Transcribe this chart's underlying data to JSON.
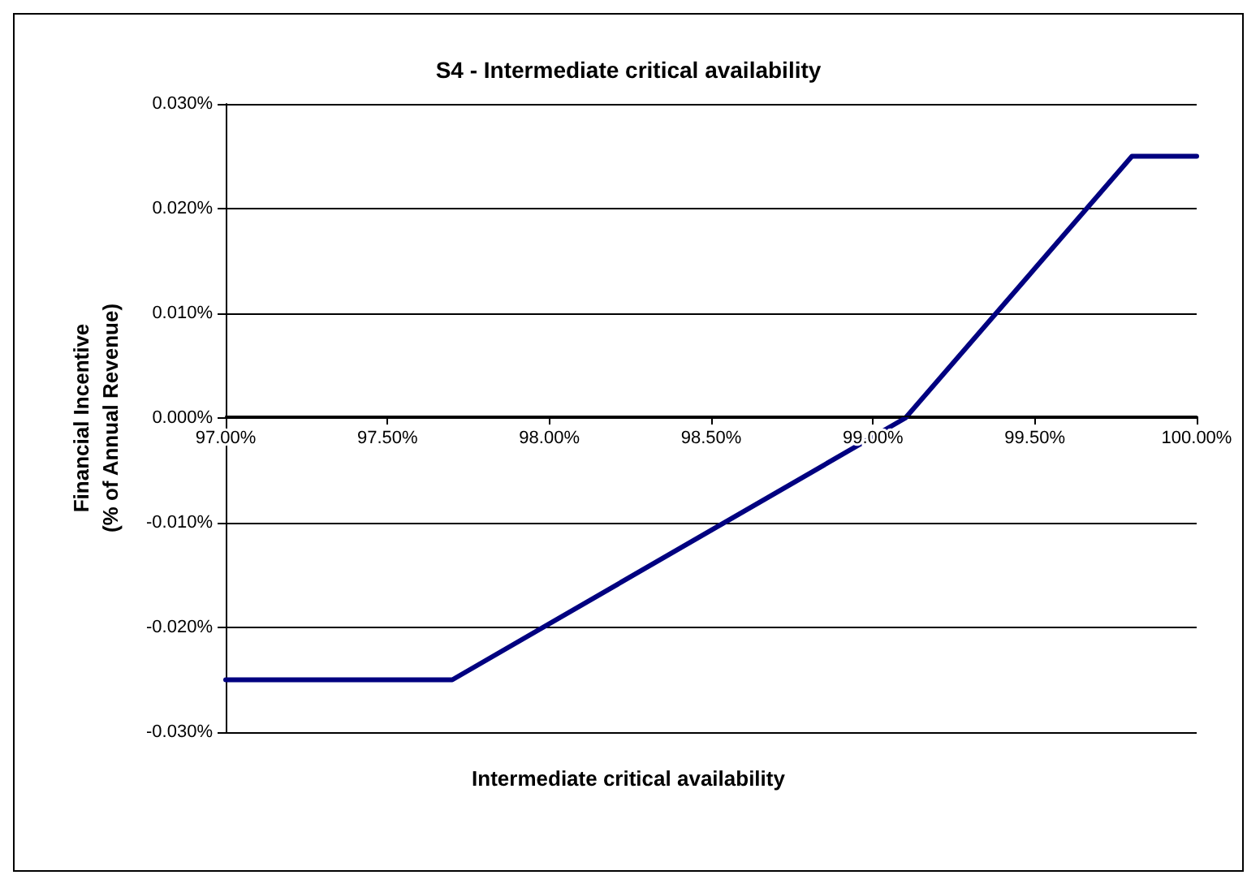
{
  "chart_data": {
    "type": "line",
    "title": "S4 - Intermediate critical availability",
    "xlabel": "Intermediate critical availability",
    "ylabel": "Financial Incentive\n(% of Annual Revenue)",
    "x": [
      97,
      97.7,
      99.1,
      99.8,
      100
    ],
    "series": [
      {
        "color": "#000080",
        "values": [
          -0.025,
          -0.025,
          0,
          0.025,
          0.025
        ]
      }
    ],
    "xlim": [
      97,
      100
    ],
    "xticks": [
      {
        "value": 97,
        "label": "97.00%"
      },
      {
        "value": 97.5,
        "label": "97.50%"
      },
      {
        "value": 98,
        "label": "98.00%"
      },
      {
        "value": 98.5,
        "label": "98.50%"
      },
      {
        "value": 99,
        "label": "99.00%"
      },
      {
        "value": 99.5,
        "label": "99.50%"
      },
      {
        "value": 100,
        "label": "100.00%"
      }
    ],
    "ylim": [
      -0.03,
      0.03
    ],
    "yticks": [
      {
        "value": -0.03,
        "label": "-0.030%"
      },
      {
        "value": -0.02,
        "label": "-0.020%"
      },
      {
        "value": -0.01,
        "label": "-0.010%"
      },
      {
        "value": 0,
        "label": "0.000%"
      },
      {
        "value": 0.01,
        "label": "0.010%"
      },
      {
        "value": 0.02,
        "label": "0.020%"
      },
      {
        "value": 0.03,
        "label": "0.030%"
      }
    ],
    "grid": "y",
    "marker": "none",
    "line_style": "solid"
  }
}
